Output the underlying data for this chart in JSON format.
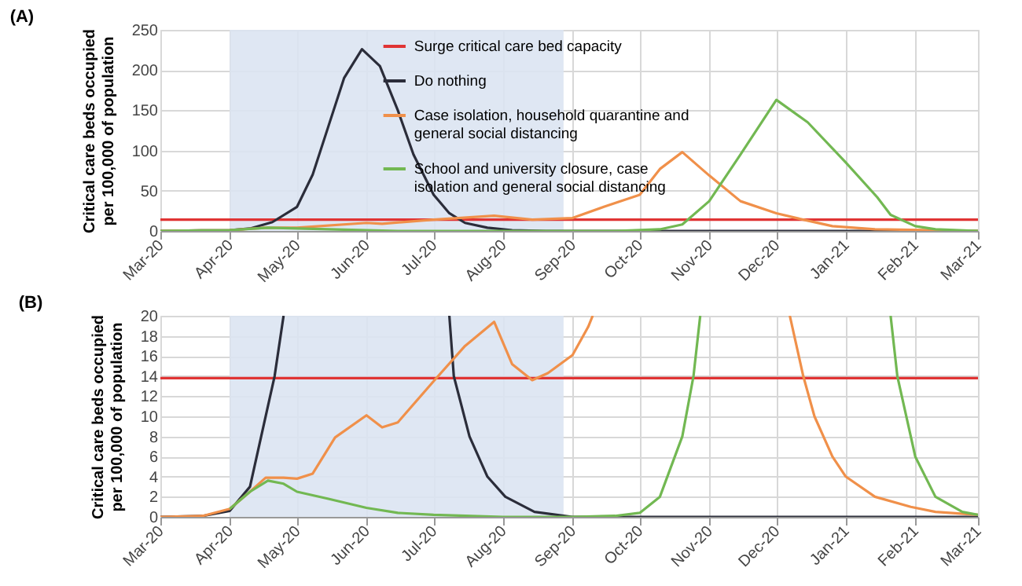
{
  "chart_data": [
    {
      "type": "line",
      "title": "(A)",
      "ylabel": "Critical care beds occupied per 100,000 of population",
      "xlim": [
        "2020-03-01",
        "2021-03-01"
      ],
      "xticks": [
        {
          "value": "2020-03-01",
          "label": "Mar-20"
        },
        {
          "value": "2020-04-01",
          "label": "Apr-20"
        },
        {
          "value": "2020-05-01",
          "label": "May-20"
        },
        {
          "value": "2020-06-01",
          "label": "Jun-20"
        },
        {
          "value": "2020-07-01",
          "label": "Jul-20"
        },
        {
          "value": "2020-08-01",
          "label": "Aug-20"
        },
        {
          "value": "2020-09-01",
          "label": "Sep-20"
        },
        {
          "value": "2020-10-01",
          "label": "Oct-20"
        },
        {
          "value": "2020-11-01",
          "label": "Nov-20"
        },
        {
          "value": "2020-12-01",
          "label": "Dec-20"
        },
        {
          "value": "2021-01-01",
          "label": "Jan-21"
        },
        {
          "value": "2021-02-01",
          "label": "Feb-21"
        },
        {
          "value": "2021-03-01",
          "label": "Mar-21"
        }
      ],
      "ylim": [
        0,
        250
      ],
      "yticks": [
        0,
        50,
        100,
        150,
        200,
        250
      ],
      "grid": true,
      "legend": "top",
      "marker": "none",
      "line_style": "solid",
      "bands": [
        {
          "axis": "x",
          "from": "2020-04-01",
          "to": "2020-08-28",
          "color": "#dce4f2"
        }
      ],
      "series": [
        {
          "name": "Surge critical care bed capacity",
          "color": "#e03434",
          "x": [
            "2020-03-01",
            "2021-03-01"
          ],
          "values": [
            14,
            14
          ]
        },
        {
          "name": "Do nothing",
          "color": "#2b2d3a",
          "x": [
            "2020-03-01",
            "2020-04-01",
            "2020-04-10",
            "2020-04-20",
            "2020-05-01",
            "2020-05-08",
            "2020-05-15",
            "2020-05-22",
            "2020-05-30",
            "2020-06-07",
            "2020-06-15",
            "2020-06-22",
            "2020-07-01",
            "2020-07-08",
            "2020-07-15",
            "2020-07-25",
            "2020-08-05",
            "2020-08-20",
            "2020-09-01",
            "2021-03-01"
          ],
          "values": [
            0,
            1,
            3,
            11,
            30,
            70,
            130,
            190,
            226,
            205,
            150,
            95,
            45,
            22,
            10,
            4,
            1,
            0,
            0,
            0
          ]
        },
        {
          "name": "Case isolation, household quarantine and general social distancing",
          "color": "#f0904a",
          "x": [
            "2020-03-01",
            "2020-04-01",
            "2020-04-17",
            "2020-05-01",
            "2020-06-01",
            "2020-06-08",
            "2020-07-01",
            "2020-07-28",
            "2020-08-14",
            "2020-09-01",
            "2020-09-15",
            "2020-10-01",
            "2020-10-10",
            "2020-10-20",
            "2020-11-01",
            "2020-11-15",
            "2020-12-01",
            "2020-12-13",
            "2020-12-26",
            "2021-01-14",
            "2021-02-10",
            "2021-03-01"
          ],
          "values": [
            0,
            1,
            4,
            4,
            10,
            9,
            14,
            19,
            14,
            16,
            30,
            45,
            77,
            98,
            69,
            37,
            22,
            14,
            6,
            2,
            1,
            0
          ]
        },
        {
          "name": "School and university closure, case isolation and general social distancing",
          "color": "#72b852",
          "x": [
            "2020-03-01",
            "2020-04-01",
            "2020-04-18",
            "2020-05-15",
            "2020-06-15",
            "2020-08-01",
            "2020-09-20",
            "2020-10-10",
            "2020-10-20",
            "2020-11-01",
            "2020-11-15",
            "2020-12-01",
            "2020-12-15",
            "2021-01-01",
            "2021-01-15",
            "2021-01-21",
            "2021-02-01",
            "2021-02-10",
            "2021-03-01"
          ],
          "values": [
            0,
            1,
            4,
            2,
            0,
            0,
            0,
            2,
            8,
            37,
            95,
            163,
            135,
            85,
            42,
            20,
            6,
            2,
            0
          ]
        }
      ]
    },
    {
      "type": "line",
      "title": "(B)",
      "ylabel": "Critical care beds occupied per 100,000 of population",
      "xlim": [
        "2020-03-01",
        "2021-03-01"
      ],
      "xticks": [
        {
          "value": "2020-03-01",
          "label": "Mar-20"
        },
        {
          "value": "2020-04-01",
          "label": "Apr-20"
        },
        {
          "value": "2020-05-01",
          "label": "May-20"
        },
        {
          "value": "2020-06-01",
          "label": "Jun-20"
        },
        {
          "value": "2020-07-01",
          "label": "Jul-20"
        },
        {
          "value": "2020-08-01",
          "label": "Aug-20"
        },
        {
          "value": "2020-09-01",
          "label": "Sep-20"
        },
        {
          "value": "2020-10-01",
          "label": "Oct-20"
        },
        {
          "value": "2020-11-01",
          "label": "Nov-20"
        },
        {
          "value": "2020-12-01",
          "label": "Dec-20"
        },
        {
          "value": "2021-01-01",
          "label": "Jan-21"
        },
        {
          "value": "2021-02-01",
          "label": "Feb-21"
        },
        {
          "value": "2021-03-01",
          "label": "Mar-21"
        }
      ],
      "ylim": [
        0,
        20
      ],
      "yticks": [
        0,
        2,
        4,
        6,
        8,
        10,
        12,
        14,
        16,
        18,
        20
      ],
      "grid": true,
      "marker": "none",
      "line_style": "solid",
      "bands": [
        {
          "axis": "x",
          "from": "2020-04-01",
          "to": "2020-08-28",
          "color": "#dce4f2"
        }
      ],
      "series": [
        {
          "color": "#e03434",
          "x": [
            "2020-03-01",
            "2021-03-01"
          ],
          "values": [
            13.8,
            13.8
          ]
        },
        {
          "color": "#2b2d3a",
          "x": [
            "2020-03-01",
            "2020-03-20",
            "2020-04-01",
            "2020-04-10",
            "2020-04-21",
            "2020-04-25"
          ],
          "values": [
            0,
            0.1,
            0.6,
            3,
            14,
            20
          ]
        },
        {
          "color": "#2b2d3a",
          "x": [
            "2020-07-08",
            "2020-07-10",
            "2020-07-17",
            "2020-07-25",
            "2020-08-02",
            "2020-08-15",
            "2020-09-01",
            "2021-03-01"
          ],
          "values": [
            20,
            14,
            8,
            4,
            2,
            0.5,
            0,
            0
          ]
        },
        {
          "color": "#f0904a",
          "x": [
            "2020-03-01",
            "2020-03-20",
            "2020-04-01",
            "2020-04-10",
            "2020-04-17",
            "2020-04-25",
            "2020-05-01",
            "2020-05-08",
            "2020-05-18",
            "2020-06-01",
            "2020-06-08",
            "2020-06-15",
            "2020-07-01",
            "2020-07-15",
            "2020-07-28",
            "2020-08-05",
            "2020-08-14",
            "2020-08-21",
            "2020-09-01",
            "2020-09-08",
            "2020-09-10"
          ],
          "values": [
            0,
            0.1,
            0.8,
            2.5,
            3.9,
            3.9,
            3.8,
            4.3,
            7.9,
            10.1,
            8.9,
            9.4,
            13.5,
            17,
            19.4,
            15.2,
            13.6,
            14.3,
            16.1,
            18.9,
            20
          ]
        },
        {
          "color": "#f0904a",
          "x": [
            "2020-12-07",
            "2020-12-13",
            "2020-12-18",
            "2020-12-26",
            "2021-01-01",
            "2021-01-14",
            "2021-01-30",
            "2021-02-10",
            "2021-03-01"
          ],
          "values": [
            20,
            14,
            10,
            6,
            4,
            2,
            1,
            0.5,
            0.2
          ]
        },
        {
          "color": "#72b852",
          "x": [
            "2020-04-01",
            "2020-04-10",
            "2020-04-18",
            "2020-04-25",
            "2020-05-01",
            "2020-05-15",
            "2020-06-01",
            "2020-06-15",
            "2020-07-01",
            "2020-08-01",
            "2020-09-01",
            "2020-09-20",
            "2020-10-01",
            "2020-10-10",
            "2020-10-20",
            "2020-10-25",
            "2020-10-28"
          ],
          "values": [
            0.8,
            2.5,
            3.6,
            3.3,
            2.5,
            1.8,
            0.9,
            0.4,
            0.2,
            0,
            0,
            0.1,
            0.4,
            2,
            8,
            14,
            20
          ]
        },
        {
          "color": "#72b852",
          "x": [
            "2021-01-21",
            "2021-01-24",
            "2021-02-01",
            "2021-02-10",
            "2021-02-22",
            "2021-03-01"
          ],
          "values": [
            20,
            14,
            6,
            2,
            0.5,
            0.2
          ]
        }
      ]
    }
  ]
}
